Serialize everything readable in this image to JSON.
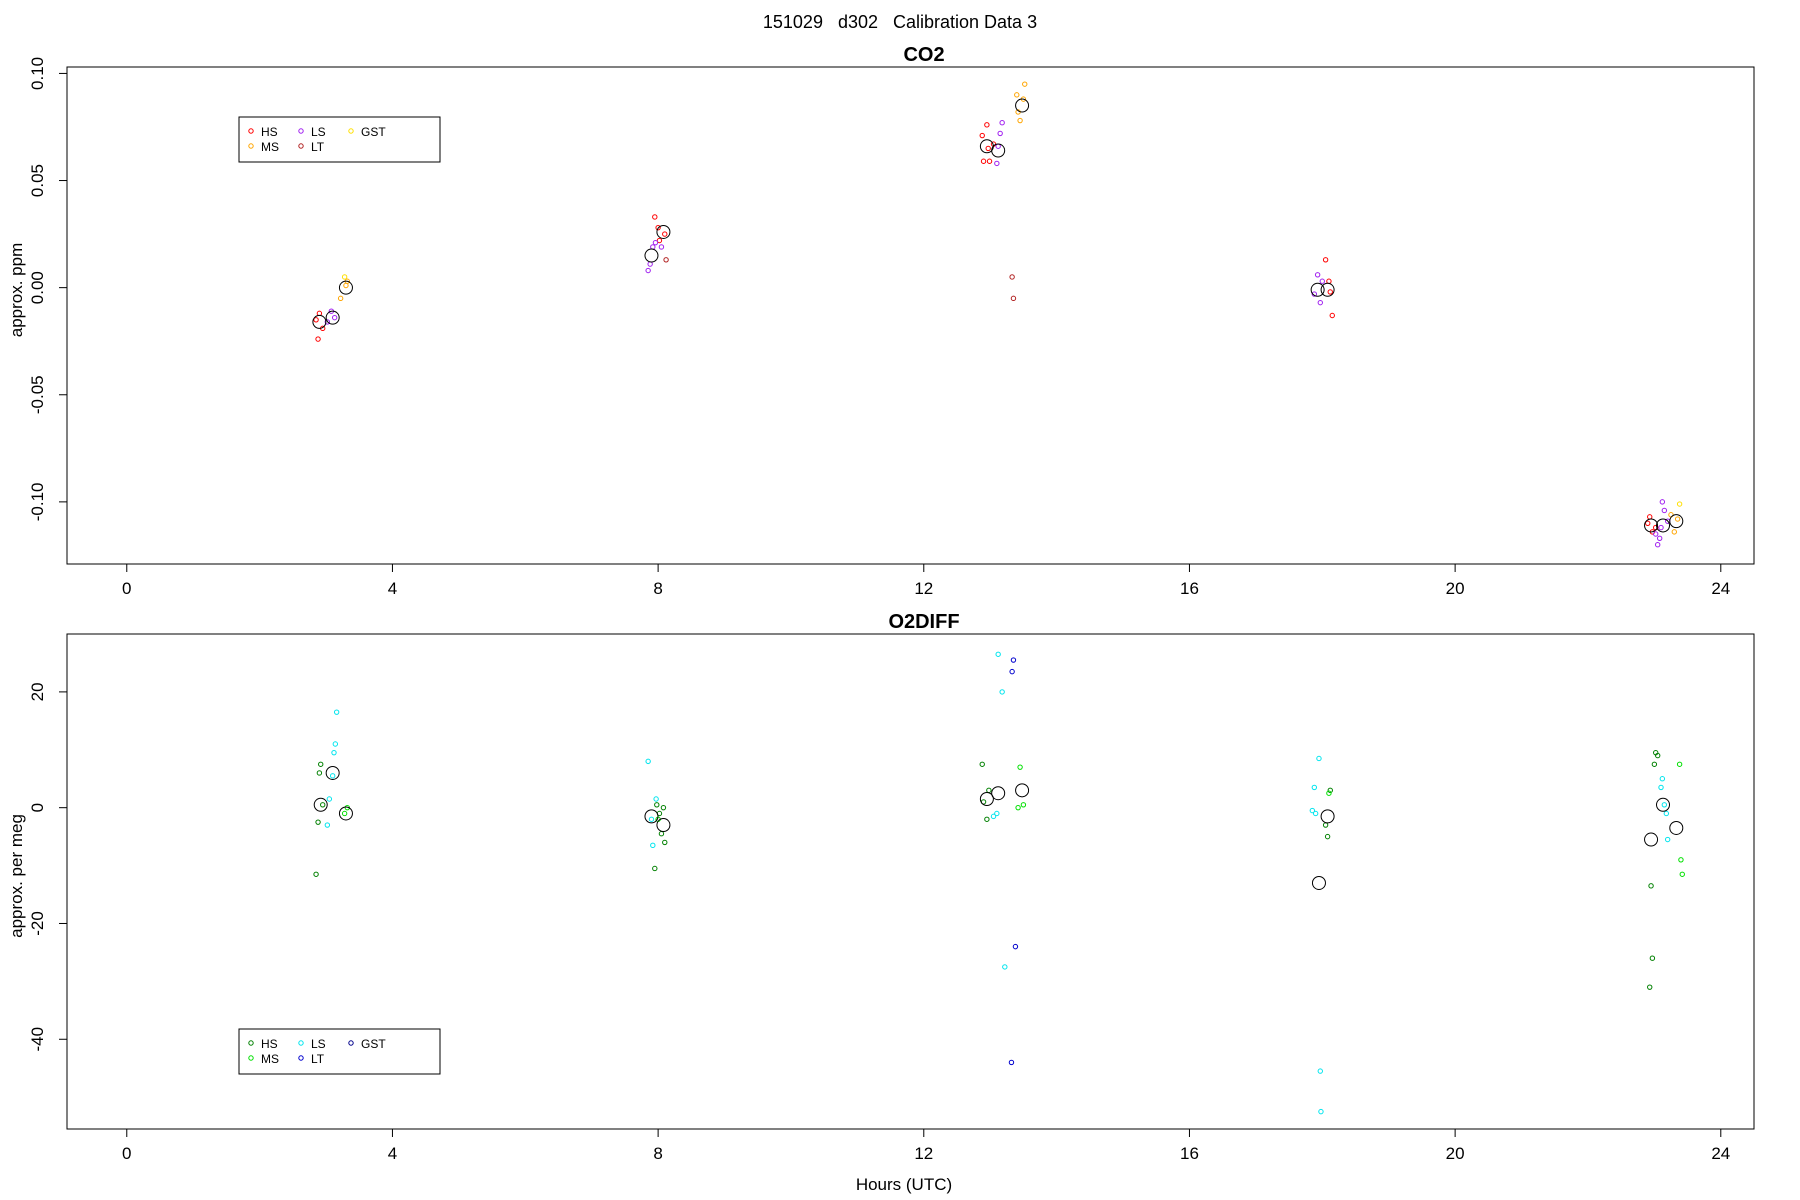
{
  "figure_title": "151029   d302   Calibration Data 3",
  "chart_data": [
    {
      "type": "scatter",
      "title": "CO2",
      "xlabel": "",
      "ylabel": "approx. ppm",
      "xlim": [
        -0.9,
        24.5
      ],
      "ylim": [
        -0.129,
        0.103
      ],
      "xticks": [
        0,
        4,
        8,
        12,
        16,
        20,
        24
      ],
      "yticks": [
        -0.1,
        -0.05,
        0,
        0.05,
        0.1
      ],
      "ytick_labels": [
        "-0.10",
        "-0.05",
        "0.00",
        "0.05",
        "0.10"
      ],
      "legend": {
        "position": "top-left",
        "entries": [
          {
            "label": "HS",
            "color": "#ff0000"
          },
          {
            "label": "MS",
            "color": "#ffa500"
          },
          {
            "label": "LS",
            "color": "#a020f0"
          },
          {
            "label": "LT",
            "color": "#b22222"
          },
          {
            "label": "GST",
            "color": "#ffe000"
          }
        ]
      },
      "series": [
        {
          "name": "HS",
          "color": "#ff0000",
          "points": [
            [
              2.85,
              -0.015
            ],
            [
              2.88,
              -0.024
            ],
            [
              2.9,
              -0.012
            ],
            [
              2.95,
              -0.019
            ],
            [
              7.95,
              0.033
            ],
            [
              8.0,
              0.028
            ],
            [
              8.02,
              0.022
            ],
            [
              8.1,
              0.025
            ],
            [
              12.88,
              0.071
            ],
            [
              12.9,
              0.059
            ],
            [
              12.95,
              0.076
            ],
            [
              12.97,
              0.065
            ],
            [
              12.99,
              0.059
            ],
            [
              13.05,
              0.067
            ],
            [
              18.05,
              0.013
            ],
            [
              18.1,
              0.003
            ],
            [
              18.12,
              -0.002
            ],
            [
              18.15,
              -0.013
            ],
            [
              22.9,
              -0.11
            ],
            [
              22.93,
              -0.107
            ],
            [
              22.97,
              -0.114
            ],
            [
              23.02,
              -0.112
            ]
          ]
        },
        {
          "name": "MS",
          "color": "#ffa500",
          "points": [
            [
              3.22,
              -0.005
            ],
            [
              3.3,
              0.001
            ],
            [
              3.32,
              0.003
            ],
            [
              13.4,
              0.09
            ],
            [
              13.42,
              0.082
            ],
            [
              13.45,
              0.078
            ],
            [
              13.5,
              0.088
            ],
            [
              13.52,
              0.095
            ],
            [
              23.25,
              -0.106
            ],
            [
              23.3,
              -0.114
            ],
            [
              23.35,
              -0.108
            ]
          ]
        },
        {
          "name": "LS",
          "color": "#a020f0",
          "points": [
            [
              3.02,
              -0.016
            ],
            [
              3.08,
              -0.011
            ],
            [
              3.13,
              -0.014
            ],
            [
              7.85,
              0.008
            ],
            [
              7.88,
              0.011
            ],
            [
              7.92,
              0.019
            ],
            [
              7.96,
              0.021
            ],
            [
              8.05,
              0.019
            ],
            [
              13.1,
              0.058
            ],
            [
              13.12,
              0.066
            ],
            [
              13.15,
              0.072
            ],
            [
              13.18,
              0.077
            ],
            [
              17.88,
              -0.003
            ],
            [
              17.93,
              0.006
            ],
            [
              17.97,
              -0.007
            ],
            [
              18.0,
              0.003
            ],
            [
              23.02,
              -0.115
            ],
            [
              23.05,
              -0.12
            ],
            [
              23.08,
              -0.117
            ],
            [
              23.1,
              -0.112
            ],
            [
              23.12,
              -0.1
            ],
            [
              23.15,
              -0.104
            ],
            [
              23.2,
              -0.109
            ]
          ]
        },
        {
          "name": "LT",
          "color": "#b22222",
          "points": [
            [
              8.12,
              0.013
            ],
            [
              13.33,
              0.005
            ],
            [
              13.35,
              -0.005
            ]
          ]
        },
        {
          "name": "GST",
          "color": "#ffe000",
          "points": [
            [
              3.28,
              0.005
            ],
            [
              23.38,
              -0.101
            ]
          ]
        }
      ],
      "means": [
        [
          2.9,
          -0.016
        ],
        [
          3.1,
          -0.014
        ],
        [
          3.3,
          0.0
        ],
        [
          7.9,
          0.015
        ],
        [
          8.08,
          0.026
        ],
        [
          12.95,
          0.066
        ],
        [
          13.12,
          0.064
        ],
        [
          13.48,
          0.085
        ],
        [
          17.93,
          -0.001
        ],
        [
          18.08,
          -0.001
        ],
        [
          22.95,
          -0.111
        ],
        [
          23.13,
          -0.111
        ],
        [
          23.33,
          -0.109
        ]
      ]
    },
    {
      "type": "scatter",
      "title": "O2DIFF",
      "xlabel": "Hours (UTC)",
      "ylabel": "approx. per meg",
      "xlim": [
        -0.9,
        24.5
      ],
      "ylim": [
        -55.5,
        30.0
      ],
      "xticks": [
        0,
        4,
        8,
        12,
        16,
        20,
        24
      ],
      "yticks": [
        -40,
        -20,
        0,
        20
      ],
      "ytick_labels": [
        "-40",
        "-20",
        "0",
        "20"
      ],
      "legend": {
        "position": "bottom-left",
        "entries": [
          {
            "label": "HS",
            "color": "#008000"
          },
          {
            "label": "MS",
            "color": "#00e000"
          },
          {
            "label": "LS",
            "color": "#00e5ee"
          },
          {
            "label": "LT",
            "color": "#0000cd"
          },
          {
            "label": "GST",
            "color": "#00008b"
          }
        ]
      },
      "series": [
        {
          "name": "HS",
          "color": "#008000",
          "points": [
            [
              2.85,
              -11.5
            ],
            [
              2.88,
              -2.5
            ],
            [
              2.9,
              6.0
            ],
            [
              2.92,
              7.5
            ],
            [
              2.95,
              0.5
            ],
            [
              7.98,
              0.5
            ],
            [
              8.02,
              -1.0
            ],
            [
              8.05,
              -4.5
            ],
            [
              8.08,
              0.0
            ],
            [
              8.1,
              -6.0
            ],
            [
              7.95,
              -10.5
            ],
            [
              12.88,
              7.5
            ],
            [
              12.9,
              1.0
            ],
            [
              12.95,
              -2.0
            ],
            [
              12.98,
              3.0
            ],
            [
              18.05,
              -3.0
            ],
            [
              18.08,
              -5.0
            ],
            [
              18.12,
              3.0
            ],
            [
              22.95,
              -13.5
            ],
            [
              22.97,
              -26.0
            ],
            [
              22.93,
              -31.0
            ],
            [
              23.0,
              7.5
            ],
            [
              23.02,
              9.5
            ],
            [
              23.05,
              9.0
            ]
          ]
        },
        {
          "name": "MS",
          "color": "#00e000",
          "points": [
            [
              3.28,
              -1.0
            ],
            [
              3.32,
              0.0
            ],
            [
              8.0,
              -2.0
            ],
            [
              13.42,
              0.0
            ],
            [
              13.45,
              7.0
            ],
            [
              13.5,
              0.5
            ],
            [
              18.1,
              2.5
            ],
            [
              23.38,
              7.5
            ],
            [
              23.4,
              -9.0
            ],
            [
              23.42,
              -11.5
            ]
          ]
        },
        {
          "name": "LS",
          "color": "#00e5ee",
          "points": [
            [
              3.02,
              -3.0
            ],
            [
              3.05,
              1.5
            ],
            [
              3.1,
              5.5
            ],
            [
              3.12,
              9.5
            ],
            [
              3.14,
              11.0
            ],
            [
              3.16,
              16.5
            ],
            [
              7.85,
              8.0
            ],
            [
              7.9,
              -2.0
            ],
            [
              7.92,
              -6.5
            ],
            [
              7.97,
              1.5
            ],
            [
              13.05,
              -1.5
            ],
            [
              13.1,
              -1.0
            ],
            [
              13.12,
              26.5
            ],
            [
              13.18,
              20.0
            ],
            [
              13.22,
              -27.5
            ],
            [
              17.85,
              -0.5
            ],
            [
              17.88,
              3.5
            ],
            [
              17.9,
              -1.0
            ],
            [
              17.95,
              8.5
            ],
            [
              17.97,
              -45.5
            ],
            [
              17.98,
              -52.5
            ],
            [
              23.1,
              3.5
            ],
            [
              23.12,
              5.0
            ],
            [
              23.15,
              0.5
            ],
            [
              23.18,
              -1.0
            ],
            [
              23.2,
              -5.5
            ]
          ]
        },
        {
          "name": "LT",
          "color": "#0000cd",
          "points": [
            [
              13.35,
              25.5
            ],
            [
              13.33,
              23.5
            ],
            [
              13.38,
              -24.0
            ],
            [
              13.32,
              -44.0
            ]
          ]
        },
        {
          "name": "GST",
          "color": "#00008b",
          "points": []
        }
      ],
      "means": [
        [
          2.92,
          0.5
        ],
        [
          3.1,
          6.0
        ],
        [
          3.3,
          -1.0
        ],
        [
          7.9,
          -1.5
        ],
        [
          8.08,
          -3.0
        ],
        [
          12.95,
          1.5
        ],
        [
          13.12,
          2.5
        ],
        [
          13.48,
          3.0
        ],
        [
          17.95,
          -13.0
        ],
        [
          18.08,
          -1.5
        ],
        [
          22.95,
          -5.5
        ],
        [
          23.13,
          0.5
        ],
        [
          23.33,
          -3.5
        ]
      ]
    }
  ]
}
